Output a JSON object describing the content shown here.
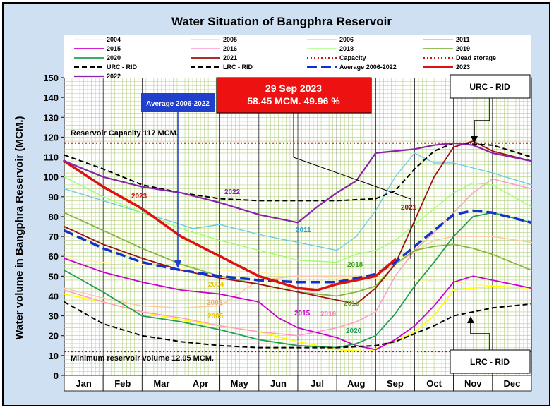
{
  "chart_data": {
    "type": "line",
    "title": "Water Situation of Bangphra Reservoir",
    "ylabel": "Water volume in Bangphra Reservoir (MCM.)",
    "xlabel": "",
    "ylim": [
      0,
      150
    ],
    "yticks": [
      0,
      10,
      20,
      30,
      40,
      50,
      60,
      70,
      80,
      90,
      100,
      110,
      120,
      130,
      140,
      150
    ],
    "xlim": [
      0,
      12
    ],
    "categories": [
      "Jan",
      "Feb",
      "Mar",
      "Apr",
      "May",
      "Jun",
      "Jul",
      "Aug",
      "Sep",
      "Oct",
      "Nov",
      "Dec"
    ],
    "grid": true,
    "legend_position": "top",
    "series": [
      {
        "name": "2004",
        "color": "#fff3a0",
        "dash": "solid",
        "width": 1.3,
        "x": [
          0,
          1,
          2,
          3,
          4,
          5,
          6,
          7,
          8,
          9,
          10,
          11,
          12
        ],
        "y": [
          59,
          57,
          56,
          54,
          53,
          52,
          50,
          49,
          49,
          48,
          47,
          45,
          44
        ]
      },
      {
        "name": "2005",
        "color": "#ffff00",
        "dash": "solid",
        "width": 1.8,
        "x": [
          0,
          1,
          2,
          3,
          4,
          5,
          6,
          7,
          7.8,
          8.5,
          9,
          9.5,
          10,
          11,
          12
        ],
        "y": [
          41,
          37,
          32,
          28,
          25,
          22,
          17,
          13,
          12,
          17,
          22,
          30,
          43,
          45,
          44
        ]
      },
      {
        "name": "2006",
        "color": "#fbc9a0",
        "dash": "solid",
        "width": 1.5,
        "x": [
          0,
          1,
          2,
          3,
          4,
          5,
          6,
          7,
          8,
          8.5,
          9,
          9.5,
          10,
          11,
          12
        ],
        "y": [
          44,
          39,
          35,
          34,
          35,
          48,
          50,
          50,
          50,
          56,
          62,
          68,
          70,
          70,
          67
        ]
      },
      {
        "name": "2011",
        "color": "#66c8ec",
        "dash": "solid",
        "width": 1.3,
        "x": [
          0,
          1,
          2,
          3,
          3.3,
          4,
          5,
          6,
          7,
          7.5,
          8,
          8.5,
          9,
          9.5,
          10,
          11,
          12
        ],
        "y": [
          94,
          88,
          82,
          76,
          74,
          76,
          71,
          67,
          63,
          70,
          83,
          100,
          112,
          107,
          107,
          102,
          96
        ]
      },
      {
        "name": "2015",
        "color": "#cc00cc",
        "dash": "solid",
        "width": 1.8,
        "x": [
          0,
          1,
          2,
          3,
          4,
          5,
          5.5,
          6,
          7,
          7.5,
          8,
          8.5,
          9,
          9.5,
          10,
          10.5,
          11,
          12
        ],
        "y": [
          59,
          52,
          47,
          43,
          41,
          37,
          29,
          24,
          19,
          15,
          13,
          18,
          25,
          35,
          47,
          50,
          48,
          44
        ]
      },
      {
        "name": "2016",
        "color": "#ff99cc",
        "dash": "solid",
        "width": 1.5,
        "x": [
          0,
          1,
          2,
          3,
          4,
          5,
          6,
          7,
          7.5,
          8,
          8.5,
          9,
          9.5,
          10,
          10.5,
          11,
          12
        ],
        "y": [
          43,
          37,
          32,
          29,
          25,
          22,
          20,
          24,
          27,
          32,
          50,
          63,
          72,
          82,
          92,
          99,
          94
        ]
      },
      {
        "name": "2018",
        "color": "#99ff66",
        "dash": "solid",
        "width": 1.3,
        "x": [
          0,
          1,
          2,
          3,
          4,
          5,
          6,
          7,
          7.5,
          8,
          8.5,
          9,
          9.5,
          10,
          10.5,
          11,
          12
        ],
        "y": [
          100,
          90,
          82,
          74,
          68,
          63,
          58,
          57,
          61,
          63,
          68,
          76,
          84,
          92,
          97,
          96,
          85
        ]
      },
      {
        "name": "2019",
        "color": "#88b440",
        "dash": "solid",
        "width": 1.8,
        "x": [
          0,
          1,
          2,
          3,
          4,
          5,
          6,
          7,
          7.5,
          8,
          8.5,
          9,
          9.5,
          10,
          10.5,
          11,
          12
        ],
        "y": [
          82,
          73,
          64,
          56,
          50,
          46,
          42,
          40,
          42,
          45,
          56,
          63,
          65,
          66,
          64,
          61,
          53
        ]
      },
      {
        "name": "2020",
        "color": "#20a050",
        "dash": "solid",
        "width": 1.8,
        "x": [
          0,
          1,
          2,
          3,
          4,
          5,
          6,
          7,
          7.5,
          8,
          8.5,
          9,
          9.5,
          10,
          10.5,
          11,
          12
        ],
        "y": [
          53,
          42,
          30,
          27,
          23,
          18,
          15,
          14,
          16,
          20,
          31,
          45,
          57,
          70,
          80,
          82,
          77
        ]
      },
      {
        "name": "2021",
        "color": "#a01010",
        "dash": "solid",
        "width": 1.8,
        "x": [
          0,
          1,
          2,
          3,
          4,
          5,
          6,
          7,
          7.5,
          8,
          8.5,
          9,
          9.5,
          10,
          10.5,
          11,
          12
        ],
        "y": [
          75,
          66,
          59,
          53,
          49,
          46,
          42,
          38,
          36,
          44,
          56,
          78,
          100,
          115,
          118,
          113,
          108
        ]
      },
      {
        "name": "Capacity",
        "color": "#cc1111",
        "dash": "dot",
        "width": 2,
        "x": [
          0,
          12
        ],
        "y": [
          117,
          117
        ]
      },
      {
        "name": "Dead storage",
        "color": "#cc1111",
        "dash": "dot",
        "width": 2,
        "x": [
          0,
          12
        ],
        "y": [
          12.05,
          12.05
        ]
      },
      {
        "name": "URC - RID",
        "color": "#000000",
        "dash": "dash",
        "width": 2,
        "x": [
          0,
          1,
          2,
          3,
          4,
          5,
          6,
          7,
          8,
          8.5,
          9,
          9.5,
          10,
          11,
          12
        ],
        "y": [
          111,
          104,
          96,
          92,
          89,
          88,
          88,
          88,
          89,
          93,
          104,
          113,
          117,
          116,
          110
        ]
      },
      {
        "name": "LRC - RID",
        "color": "#000000",
        "dash": "dash",
        "width": 2,
        "x": [
          0,
          1,
          2,
          3,
          4,
          5,
          6,
          7,
          8,
          8.5,
          9,
          9.5,
          10,
          11,
          12
        ],
        "y": [
          37,
          26,
          20,
          17,
          15,
          14,
          14,
          14,
          15,
          17,
          21,
          25,
          30,
          34,
          36
        ]
      },
      {
        "name": "Average 2006-2022",
        "color": "#1133cc",
        "dash": "longdash",
        "width": 3.5,
        "x": [
          0,
          1,
          2,
          3,
          4,
          5,
          6,
          7,
          8,
          8.5,
          9,
          9.5,
          10,
          10.5,
          11,
          12
        ],
        "y": [
          73,
          64,
          57,
          53,
          50,
          48,
          47,
          47,
          51,
          57,
          65,
          73,
          81,
          83,
          82,
          77
        ]
      },
      {
        "name": "2023",
        "color": "#dd1111",
        "dash": "solid",
        "width": 3.5,
        "x": [
          0,
          1,
          2,
          3,
          4,
          5,
          6,
          6.5,
          7,
          7.5,
          8,
          8.5
        ],
        "y": [
          108,
          95,
          84,
          70,
          60,
          50,
          44,
          43,
          46,
          48,
          50,
          58.45
        ]
      },
      {
        "name": "2022",
        "color": "#8822aa",
        "dash": "solid",
        "width": 2.2,
        "x": [
          0,
          1,
          2,
          3,
          4,
          5,
          6,
          6.5,
          7,
          7.5,
          8,
          8.5,
          9,
          9.5,
          10,
          10.5,
          11,
          12
        ],
        "y": [
          108,
          100,
          95,
          92,
          87,
          81,
          77,
          85,
          92,
          98,
          112,
          113,
          114,
          116,
          117,
          116,
          112,
          108
        ]
      }
    ],
    "annotations": {
      "capacity_text": "Reservoir Capacity 117 MCM.",
      "min_volume_text": "Minimum reservoir volume 12.05 MCM.",
      "current_box_line1": "29 Sep 2023",
      "current_box_line2": "58.45 MCM. 49.96 %",
      "average_box": "Average 2006-2022",
      "urc_box": "URC - RID",
      "lrc_box": "LRC - RID",
      "label_2023": "2023",
      "label_2022": "2022",
      "label_2011": "2011",
      "label_2021": "2021",
      "label_2018": "2018",
      "label_2004": "2004",
      "label_2006": "2006",
      "label_2005": "2005",
      "label_2015": "2015",
      "label_2016": "2016",
      "label_2019": "2019",
      "label_2020": "2020"
    },
    "colors": {
      "frame_background": "#cfe0f3",
      "plot_background": "#ffffff",
      "grid": "#b5d07e",
      "current_box": "#ee1111",
      "average_box": "#1f3fcc"
    }
  }
}
